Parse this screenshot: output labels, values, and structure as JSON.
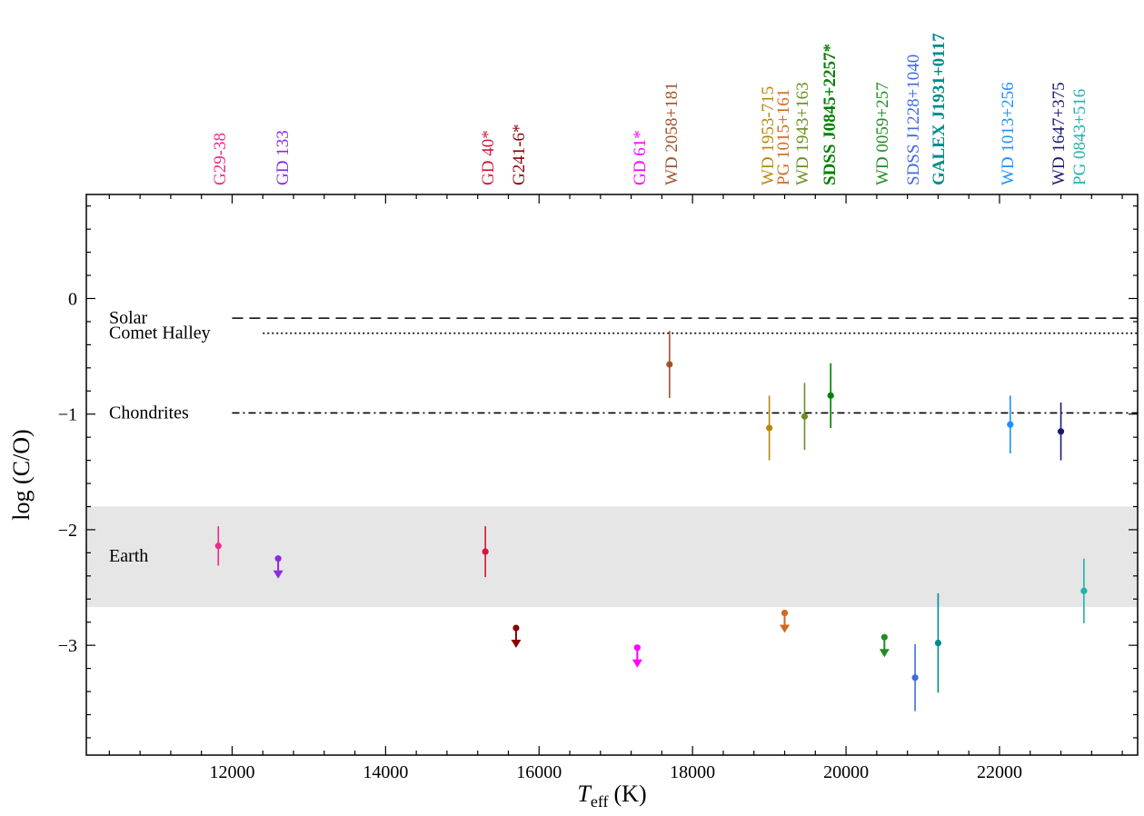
{
  "chart_data": {
    "type": "scatter",
    "xlabel_main": "T",
    "xlabel_sub": "eff",
    "xlabel_unit": "(K)",
    "ylabel": "log (C/O)",
    "xlim": [
      10100,
      23800
    ],
    "ylim": [
      -3.95,
      0.9
    ],
    "x_ticks": [
      12000,
      14000,
      16000,
      18000,
      20000,
      22000
    ],
    "y_ticks": [
      0,
      -1,
      -2,
      -3
    ],
    "y_tick_labels": [
      "0",
      "−1",
      "−2",
      "−3"
    ],
    "earth_band": {
      "label": "Earth",
      "ymin": -2.67,
      "ymax": -1.8,
      "color": "#e6e6e6"
    },
    "reference_lines": [
      {
        "label": "Solar",
        "y": -0.17,
        "x_start": 12000,
        "style": "dashed"
      },
      {
        "label": "Comet Halley",
        "y": -0.3,
        "x_start": 12400,
        "style": "dotted"
      },
      {
        "label": "Chondrites",
        "y": -0.99,
        "x_start": 12000,
        "style": "dashdot"
      }
    ],
    "stars": [
      {
        "name": "G29-38",
        "x": 11820,
        "y": -2.14,
        "err_lo": 0.17,
        "err_hi": 0.17,
        "upper_limit": false,
        "color": "#ee2a8a"
      },
      {
        "name": "GD 133",
        "x": 12600,
        "y": -2.25,
        "upper_limit": true,
        "color": "#8a2be2"
      },
      {
        "name": "GD 40*",
        "x": 15300,
        "y": -2.19,
        "err_lo": 0.22,
        "err_hi": 0.22,
        "upper_limit": false,
        "color": "#d4143c"
      },
      {
        "name": "G241-6*",
        "x": 15700,
        "y": -2.85,
        "upper_limit": true,
        "color": "#8b0000"
      },
      {
        "name": "GD 61*",
        "x": 17280,
        "y": -3.02,
        "upper_limit": true,
        "color": "#ff00ff"
      },
      {
        "name": "WD 2058+181",
        "x": 17700,
        "y": -0.57,
        "err_lo": 0.29,
        "err_hi": 0.29,
        "upper_limit": false,
        "color": "#a0522d"
      },
      {
        "name": "WD 1953-715",
        "x": 19000,
        "y": -1.12,
        "err_lo": 0.28,
        "err_hi": 0.28,
        "upper_limit": false,
        "color": "#b8860b"
      },
      {
        "name": "PG 1015+161",
        "x": 19200,
        "y": -2.72,
        "upper_limit": true,
        "color": "#d2691e"
      },
      {
        "name": "WD 1943+163",
        "x": 19460,
        "y": -1.02,
        "err_lo": 0.29,
        "err_hi": 0.29,
        "upper_limit": false,
        "color": "#6b8e23"
      },
      {
        "name": "SDSS J0845+2257*",
        "x": 19800,
        "y": -0.84,
        "err_lo": 0.28,
        "err_hi": 0.28,
        "upper_limit": false,
        "color": "#008000"
      },
      {
        "name": "WD 0059+257",
        "x": 20500,
        "y": -2.93,
        "upper_limit": true,
        "color": "#228b22"
      },
      {
        "name": "SDSS J1228+1040",
        "x": 20900,
        "y": -3.28,
        "err_lo": 0.29,
        "err_hi": 0.29,
        "upper_limit": false,
        "color": "#4169e1"
      },
      {
        "name": "GALEX J1931+0117",
        "x": 21200,
        "y": -2.98,
        "err_lo": 0.43,
        "err_hi": 0.43,
        "upper_limit": false,
        "color": "#008b8b"
      },
      {
        "name": "WD 1013+256",
        "x": 22140,
        "y": -1.09,
        "err_lo": 0.25,
        "err_hi": 0.25,
        "upper_limit": false,
        "color": "#1e90ff"
      },
      {
        "name": "WD 1647+375",
        "x": 22800,
        "y": -1.15,
        "err_lo": 0.25,
        "err_hi": 0.25,
        "upper_limit": false,
        "color": "#191970"
      },
      {
        "name": "PG 0843+516",
        "x": 23100,
        "y": -2.53,
        "err_lo": 0.28,
        "err_hi": 0.28,
        "upper_limit": false,
        "color": "#20b2aa"
      }
    ]
  }
}
